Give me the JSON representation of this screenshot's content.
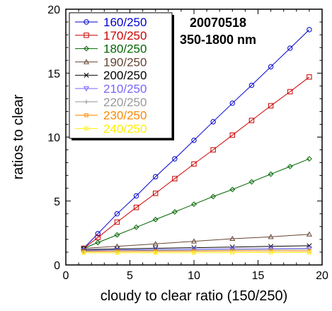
{
  "chart_data": {
    "type": "scatter",
    "title": "",
    "annotations": [
      "20070518",
      "350-1800 nm"
    ],
    "xlabel": "cloudy to clear ratio (150/250)",
    "ylabel": "ratios to clear",
    "xlim": [
      0,
      20
    ],
    "ylim": [
      0,
      20
    ],
    "xticks": [
      0,
      5,
      10,
      15,
      20
    ],
    "yticks": [
      0,
      5,
      10,
      15,
      20
    ],
    "grid": false,
    "legend_position": "top-left",
    "series": [
      {
        "name": "160/250",
        "color": "#0000cc",
        "marker": "circle",
        "x": [
          1.4,
          2.5,
          4,
          5.5,
          7,
          8.5,
          10,
          11.5,
          13,
          14.5,
          16,
          17.5,
          19
        ],
        "y": [
          1.3,
          2.45,
          4.0,
          5.4,
          6.9,
          8.3,
          9.75,
          11.2,
          12.65,
          14.05,
          15.5,
          16.95,
          18.4
        ]
      },
      {
        "name": "170/250",
        "color": "#cc0000",
        "marker": "square",
        "x": [
          1.4,
          2.5,
          4,
          5.5,
          7,
          8.5,
          10,
          11.5,
          13,
          14.5,
          16,
          17.5,
          19
        ],
        "y": [
          1.3,
          2.15,
          3.35,
          4.5,
          5.6,
          6.75,
          7.9,
          9.0,
          10.15,
          11.3,
          12.45,
          13.55,
          14.7
        ]
      },
      {
        "name": "180/250",
        "color": "#006600",
        "marker": "diamond",
        "x": [
          1.4,
          2.5,
          4,
          5.5,
          7,
          8.5,
          10,
          11.5,
          13,
          14.5,
          16,
          17.5,
          19
        ],
        "y": [
          1.3,
          1.75,
          2.35,
          2.95,
          3.55,
          4.15,
          4.75,
          5.35,
          5.9,
          6.5,
          7.1,
          7.7,
          8.3
        ]
      },
      {
        "name": "190/250",
        "color": "#664433",
        "marker": "triangle",
        "x": [
          1.4,
          4,
          7,
          10,
          13,
          16,
          19
        ],
        "y": [
          1.3,
          1.45,
          1.65,
          1.85,
          2.05,
          2.2,
          2.4
        ]
      },
      {
        "name": "200/250",
        "color": "#000000",
        "marker": "x",
        "x": [
          1.4,
          4,
          7,
          10,
          13,
          16,
          19
        ],
        "y": [
          1.2,
          1.25,
          1.3,
          1.35,
          1.4,
          1.45,
          1.5
        ]
      },
      {
        "name": "210/250",
        "color": "#7766ff",
        "marker": "triangle-down",
        "x": [
          1.4,
          4,
          7,
          10,
          13,
          16,
          19
        ],
        "y": [
          1.15,
          1.18,
          1.2,
          1.23,
          1.26,
          1.28,
          1.3
        ]
      },
      {
        "name": "220/250",
        "color": "#999999",
        "marker": "plus",
        "x": [
          1.4,
          4,
          7,
          10,
          13,
          16,
          19
        ],
        "y": [
          1.1,
          1.12,
          1.14,
          1.16,
          1.18,
          1.2,
          1.22
        ]
      },
      {
        "name": "230/250",
        "color": "#ff8800",
        "marker": "square-small",
        "x": [
          1.4,
          4,
          7,
          10,
          13,
          16,
          19
        ],
        "y": [
          1.05,
          1.06,
          1.07,
          1.08,
          1.09,
          1.1,
          1.1
        ]
      },
      {
        "name": "240/250",
        "color": "#ffee00",
        "marker": "square-small",
        "x": [
          1.4,
          4,
          7,
          10,
          13,
          16,
          19
        ],
        "y": [
          0.95,
          0.95,
          0.96,
          0.96,
          0.97,
          0.97,
          0.98
        ]
      }
    ]
  }
}
